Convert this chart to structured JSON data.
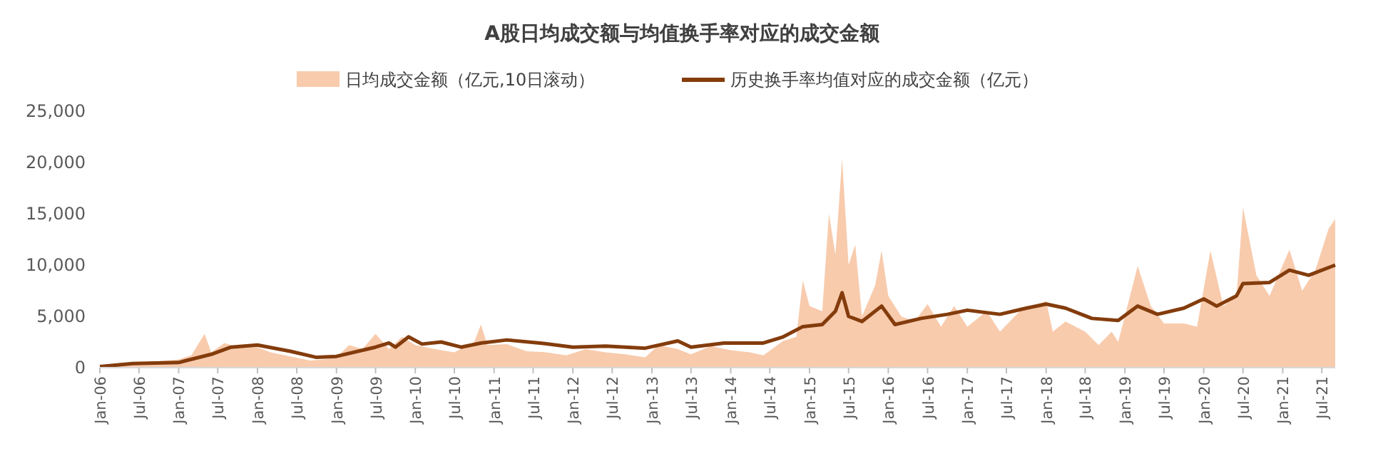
{
  "chart_data": {
    "type": "area",
    "title": "A股日均成交额与均值换手率对应的成交金额",
    "legend": "top",
    "grid": false,
    "xlim": [
      "2006-01-01",
      "2021-09-01"
    ],
    "xticks": [
      {
        "value": "2006-01-01",
        "label": "Jan-06"
      },
      {
        "value": "2006-07-01",
        "label": "Jul-06"
      },
      {
        "value": "2007-01-01",
        "label": "Jan-07"
      },
      {
        "value": "2007-07-01",
        "label": "Jul-07"
      },
      {
        "value": "2008-01-01",
        "label": "Jan-08"
      },
      {
        "value": "2008-07-01",
        "label": "Jul-08"
      },
      {
        "value": "2009-01-01",
        "label": "Jan-09"
      },
      {
        "value": "2009-07-01",
        "label": "Jul-09"
      },
      {
        "value": "2010-01-01",
        "label": "Jan-10"
      },
      {
        "value": "2010-07-01",
        "label": "Jul-10"
      },
      {
        "value": "2011-01-01",
        "label": "Jan-11"
      },
      {
        "value": "2011-07-01",
        "label": "Jul-11"
      },
      {
        "value": "2012-01-01",
        "label": "Jan-12"
      },
      {
        "value": "2012-07-01",
        "label": "Jul-12"
      },
      {
        "value": "2013-01-01",
        "label": "Jan-13"
      },
      {
        "value": "2013-07-01",
        "label": "Jul-13"
      },
      {
        "value": "2014-01-01",
        "label": "Jan-14"
      },
      {
        "value": "2014-07-01",
        "label": "Jul-14"
      },
      {
        "value": "2015-01-01",
        "label": "Jan-15"
      },
      {
        "value": "2015-07-01",
        "label": "Jul-15"
      },
      {
        "value": "2016-01-01",
        "label": "Jan-16"
      },
      {
        "value": "2016-07-01",
        "label": "Jul-16"
      },
      {
        "value": "2017-01-01",
        "label": "Jan-17"
      },
      {
        "value": "2017-07-01",
        "label": "Jul-17"
      },
      {
        "value": "2018-01-01",
        "label": "Jan-18"
      },
      {
        "value": "2018-07-01",
        "label": "Jul-18"
      },
      {
        "value": "2019-01-01",
        "label": "Jan-19"
      },
      {
        "value": "2019-07-01",
        "label": "Jul-19"
      },
      {
        "value": "2020-01-01",
        "label": "Jan-20"
      },
      {
        "value": "2020-07-01",
        "label": "Jul-20"
      },
      {
        "value": "2021-01-01",
        "label": "Jan-21"
      },
      {
        "value": "2021-07-01",
        "label": "Jul-21"
      }
    ],
    "ylim": [
      0,
      25000
    ],
    "yticks": [
      0,
      {
        "value": 5000,
        "label": "5,000"
      },
      {
        "value": 10000,
        "label": "10,000"
      },
      {
        "value": 15000,
        "label": "15,000"
      },
      {
        "value": 20000,
        "label": "20,000"
      },
      {
        "value": 25000,
        "label": "25,000"
      }
    ],
    "series": [
      {
        "name": "日均成交金额（亿元,10日滚动）",
        "color": "#f8cbad",
        "x": [
          "2006-01",
          "2006-06",
          "2007-01",
          "2007-03",
          "2007-05",
          "2007-06",
          "2007-08",
          "2007-10",
          "2008-01",
          "2008-03",
          "2008-06",
          "2008-09",
          "2008-11",
          "2009-01",
          "2009-03",
          "2009-05",
          "2009-07",
          "2009-09",
          "2009-11",
          "2010-01",
          "2010-04",
          "2010-07",
          "2010-10",
          "2010-11",
          "2010-12",
          "2011-03",
          "2011-06",
          "2011-09",
          "2011-12",
          "2012-03",
          "2012-06",
          "2012-09",
          "2012-12",
          "2013-02",
          "2013-05",
          "2013-07",
          "2013-10",
          "2014-01",
          "2014-04",
          "2014-06",
          "2014-09",
          "2014-11",
          "2014-12",
          "2015-01",
          "2015-03",
          "2015-04",
          "2015-05",
          "2015-06",
          "2015-07",
          "2015-08",
          "2015-09",
          "2015-11",
          "2015-12",
          "2016-01",
          "2016-03",
          "2016-05",
          "2016-07",
          "2016-09",
          "2016-11",
          "2017-01",
          "2017-04",
          "2017-06",
          "2017-09",
          "2017-11",
          "2018-01",
          "2018-02",
          "2018-04",
          "2018-07",
          "2018-09",
          "2018-11",
          "2018-12",
          "2019-03",
          "2019-05",
          "2019-07",
          "2019-10",
          "2019-12",
          "2020-02",
          "2020-04",
          "2020-06",
          "2020-07",
          "2020-09",
          "2020-11",
          "2021-01",
          "2021-02",
          "2021-04",
          "2021-06",
          "2021-08",
          "2021-09"
        ],
        "values": [
          200,
          400,
          800,
          1200,
          3300,
          1500,
          2400,
          2000,
          2000,
          1500,
          1100,
          700,
          800,
          1000,
          2200,
          1800,
          3300,
          1800,
          3000,
          2200,
          1800,
          1500,
          2500,
          4200,
          2200,
          2300,
          1600,
          1500,
          1200,
          1800,
          1500,
          1300,
          1000,
          2200,
          1800,
          1300,
          2100,
          1700,
          1500,
          1200,
          2600,
          3000,
          8500,
          6000,
          5500,
          15000,
          11000,
          20400,
          10000,
          12000,
          5000,
          8000,
          11400,
          7000,
          5000,
          4500,
          6200,
          4000,
          6000,
          4000,
          5500,
          3500,
          5500,
          6000,
          6500,
          3500,
          4500,
          3500,
          2200,
          3500,
          2500,
          9900,
          6000,
          4300,
          4300,
          4000,
          11400,
          6000,
          7000,
          15600,
          9000,
          7000,
          10000,
          11500,
          7500,
          9500,
          13500,
          14500
        ]
      },
      {
        "name": "历史换手率均值对应的成交金额（亿元）",
        "type": "line",
        "color": "#843c0c",
        "x": [
          "2006-01",
          "2006-06",
          "2007-01",
          "2007-06",
          "2007-09",
          "2008-01",
          "2008-06",
          "2008-10",
          "2009-01",
          "2009-07",
          "2009-09",
          "2009-10",
          "2009-12",
          "2010-02",
          "2010-05",
          "2010-08",
          "2010-11",
          "2011-03",
          "2011-08",
          "2012-01",
          "2012-06",
          "2012-12",
          "2013-05",
          "2013-07",
          "2013-12",
          "2014-06",
          "2014-09",
          "2014-12",
          "2015-03",
          "2015-05",
          "2015-06",
          "2015-07",
          "2015-09",
          "2015-12",
          "2016-02",
          "2016-06",
          "2016-10",
          "2017-01",
          "2017-06",
          "2017-10",
          "2018-01",
          "2018-04",
          "2018-08",
          "2018-12",
          "2019-03",
          "2019-06",
          "2019-10",
          "2020-01",
          "2020-03",
          "2020-06",
          "2020-07",
          "2020-11",
          "2021-02",
          "2021-05",
          "2021-09"
        ],
        "values": [
          100,
          400,
          500,
          1300,
          2000,
          2200,
          1600,
          1000,
          1100,
          2000,
          2400,
          2000,
          3000,
          2300,
          2500,
          2000,
          2400,
          2700,
          2400,
          2000,
          2100,
          1900,
          2600,
          2000,
          2400,
          2400,
          3000,
          4000,
          4200,
          5500,
          7300,
          5000,
          4500,
          6000,
          4200,
          4800,
          5200,
          5600,
          5200,
          5800,
          6200,
          5800,
          4800,
          4600,
          6000,
          5200,
          5800,
          6700,
          6000,
          7000,
          8200,
          8300,
          9500,
          9000,
          10000
        ]
      }
    ]
  }
}
